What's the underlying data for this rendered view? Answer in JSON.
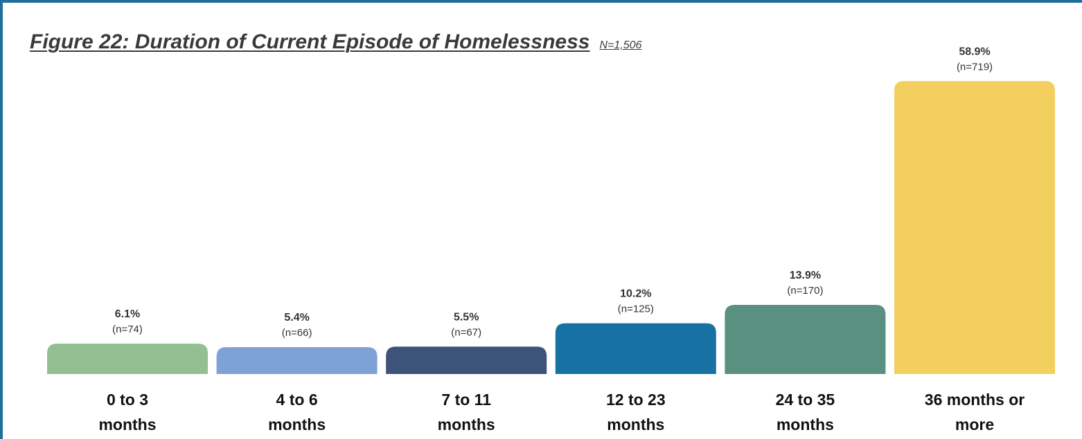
{
  "chart_data": {
    "type": "bar",
    "title": "Figure 22: Duration of Current Episode of Homelessness",
    "subtitle": "N=1,506",
    "xlabel": "",
    "ylabel": "",
    "ylim": [
      0,
      62
    ],
    "grid": false,
    "legend": "none",
    "categories": [
      [
        "0 to 3",
        "months"
      ],
      [
        "4 to 6",
        "months"
      ],
      [
        "7 to 11",
        "months"
      ],
      [
        "12 to 23",
        "months"
      ],
      [
        "24 to 35",
        "months"
      ],
      [
        "36 months or",
        "more"
      ]
    ],
    "values": [
      6.1,
      5.4,
      5.5,
      10.2,
      13.9,
      58.9
    ],
    "value_labels": [
      "6.1%",
      "5.4%",
      "5.5%",
      "10.2%",
      "13.9%",
      "58.9%"
    ],
    "count_labels": [
      "(n=74)",
      "(n=66)",
      "(n=67)",
      "(n=125)",
      "(n=170)",
      "(n=719)"
    ],
    "colors": [
      "#93bf93",
      "#7ea1d6",
      "#3d5478",
      "#1772a3",
      "#5a9080",
      "#f2cf5e"
    ]
  }
}
